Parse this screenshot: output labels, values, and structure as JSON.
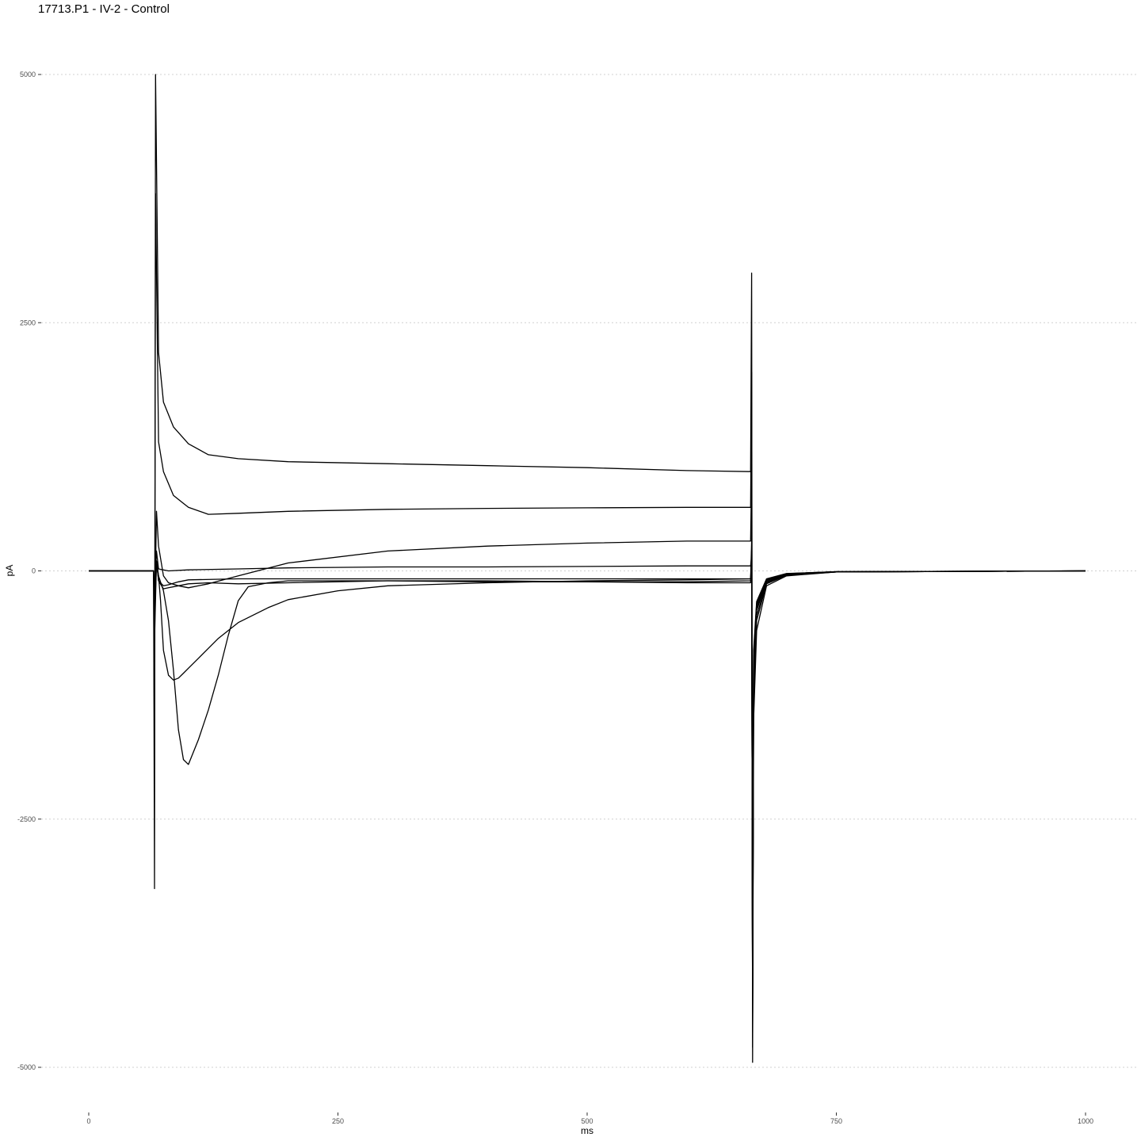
{
  "chart_data": {
    "type": "line",
    "title": "17713.P1 - IV-2 - Control",
    "xlabel": "ms",
    "ylabel": "pA",
    "xlim": [
      -20,
      1050
    ],
    "ylim": [
      -5250,
      5150
    ],
    "x_ticks": [
      0,
      250,
      500,
      750,
      1000
    ],
    "x_tick_labels": [
      "0",
      "250",
      "500",
      "750",
      "1000"
    ],
    "y_ticks": [
      -5000,
      -2500,
      0,
      2500,
      5000
    ],
    "y_tick_labels": [
      "-5000",
      "-2500",
      "0",
      "2500",
      "5000"
    ],
    "grid": "horizontal dotted",
    "legend": "none",
    "series": [
      {
        "x": [
          0,
          65,
          66,
          67,
          70,
          75,
          85,
          100,
          120,
          150,
          200,
          300,
          400,
          500,
          600,
          664,
          665,
          666,
          667,
          670,
          680,
          700,
          750,
          1000
        ],
        "y": [
          0,
          0,
          -3200,
          5000,
          2200,
          1700,
          1450,
          1280,
          1170,
          1130,
          1100,
          1080,
          1060,
          1040,
          1010,
          1000,
          3000,
          -4950,
          -1500,
          -600,
          -150,
          -50,
          -10,
          0
        ]
      },
      {
        "x": [
          0,
          65,
          66,
          67,
          70,
          75,
          85,
          100,
          120,
          150,
          200,
          300,
          400,
          500,
          600,
          664,
          665,
          666,
          667,
          670,
          680,
          700,
          750,
          1000
        ],
        "y": [
          0,
          0,
          -2000,
          3800,
          1300,
          1000,
          760,
          640,
          570,
          580,
          600,
          620,
          630,
          635,
          640,
          640,
          2000,
          -4800,
          -1300,
          -500,
          -130,
          -45,
          -10,
          0
        ]
      },
      {
        "x": [
          0,
          65,
          66,
          68,
          70,
          75,
          80,
          90,
          100,
          120,
          150,
          200,
          300,
          400,
          500,
          600,
          664,
          665,
          666,
          667,
          670,
          680,
          700,
          750,
          1000
        ],
        "y": [
          0,
          0,
          -600,
          600,
          250,
          -50,
          -120,
          -150,
          -170,
          -130,
          -50,
          80,
          200,
          250,
          280,
          300,
          300,
          1000,
          -4700,
          -1200,
          -450,
          -120,
          -40,
          -10,
          0
        ]
      },
      {
        "x": [
          0,
          65,
          66,
          68,
          70,
          72,
          75,
          80,
          85,
          90,
          95,
          100,
          110,
          120,
          130,
          150,
          180,
          200,
          250,
          300,
          400,
          500,
          600,
          664,
          665,
          666,
          667,
          670,
          680,
          700,
          750,
          1000
        ],
        "y": [
          0,
          0,
          -700,
          100,
          -50,
          -300,
          -800,
          -1050,
          -1100,
          -1080,
          -1030,
          -980,
          -880,
          -780,
          -680,
          -520,
          -370,
          -290,
          -200,
          -150,
          -120,
          -100,
          -90,
          -80,
          300,
          -4600,
          -1100,
          -400,
          -110,
          -35,
          -10,
          0
        ]
      },
      {
        "x": [
          0,
          65,
          66,
          68,
          70,
          75,
          80,
          85,
          90,
          95,
          100,
          110,
          120,
          130,
          140,
          150,
          160,
          180,
          200,
          300,
          400,
          500,
          600,
          664,
          665,
          666,
          667,
          670,
          680,
          700,
          750,
          1000
        ],
        "y": [
          0,
          0,
          -500,
          100,
          -50,
          -200,
          -500,
          -1000,
          -1600,
          -1900,
          -1950,
          -1700,
          -1400,
          -1050,
          -650,
          -300,
          -160,
          -120,
          -100,
          -100,
          -110,
          -110,
          -110,
          -100,
          200,
          -4500,
          -1000,
          -380,
          -100,
          -30,
          -8,
          0
        ]
      },
      {
        "x": [
          0,
          65,
          66,
          68,
          70,
          80,
          100,
          150,
          200,
          300,
          400,
          500,
          600,
          664,
          665,
          666,
          667,
          670,
          680,
          700,
          750,
          1000
        ],
        "y": [
          0,
          0,
          -300,
          200,
          20,
          0,
          10,
          20,
          30,
          40,
          40,
          45,
          50,
          50,
          150,
          -4400,
          -900,
          -350,
          -90,
          -30,
          -8,
          0
        ]
      },
      {
        "x": [
          0,
          65,
          66,
          68,
          70,
          75,
          80,
          90,
          100,
          150,
          200,
          300,
          400,
          500,
          600,
          664,
          665,
          666,
          667,
          670,
          680,
          700,
          750,
          1000
        ],
        "y": [
          0,
          0,
          -300,
          100,
          -100,
          -150,
          -140,
          -110,
          -90,
          -80,
          -80,
          -80,
          -80,
          -80,
          -80,
          -80,
          100,
          -4300,
          -850,
          -330,
          -85,
          -28,
          -8,
          0
        ]
      },
      {
        "x": [
          0,
          65,
          66,
          68,
          70,
          75,
          80,
          90,
          100,
          120,
          150,
          200,
          300,
          400,
          500,
          600,
          664,
          665,
          666,
          667,
          670,
          680,
          700,
          750,
          1000
        ],
        "y": [
          0,
          0,
          -300,
          100,
          -100,
          -180,
          -170,
          -150,
          -130,
          -120,
          -130,
          -120,
          -100,
          -100,
          -110,
          -120,
          -120,
          80,
          -4200,
          -800,
          -310,
          -80,
          -26,
          -8,
          0
        ]
      }
    ]
  }
}
